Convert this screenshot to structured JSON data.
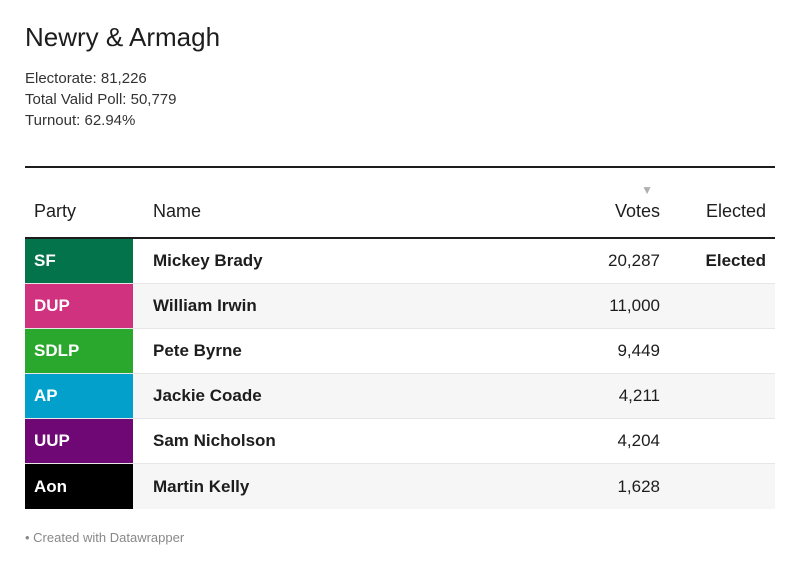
{
  "title": "Newry & Armagh",
  "meta": {
    "electorate": "Electorate: 81,226",
    "total_valid_poll": "Total Valid Poll: 50,779",
    "turnout": "Turnout: 62.94%"
  },
  "table": {
    "headers": {
      "party": "Party",
      "name": "Name",
      "votes": "Votes",
      "elected": "Elected"
    },
    "sort_icon": "sort-descending-icon",
    "rows": [
      {
        "party": "SF",
        "color": "#03734b",
        "name": "Mickey Brady",
        "votes": "20,287",
        "elected": "Elected"
      },
      {
        "party": "DUP",
        "color": "#d0327f",
        "name": "William Irwin",
        "votes": "11,000",
        "elected": ""
      },
      {
        "party": "SDLP",
        "color": "#2aa82d",
        "name": "Pete Byrne",
        "votes": "9,449",
        "elected": ""
      },
      {
        "party": "AP",
        "color": "#04a0cc",
        "name": "Jackie Coade",
        "votes": "4,211",
        "elected": ""
      },
      {
        "party": "UUP",
        "color": "#6f0775",
        "name": "Sam Nicholson",
        "votes": "4,204",
        "elected": ""
      },
      {
        "party": "Aon",
        "color": "#000000",
        "name": "Martin Kelly",
        "votes": "1,628",
        "elected": ""
      }
    ]
  },
  "footer": "• Created with Datawrapper"
}
